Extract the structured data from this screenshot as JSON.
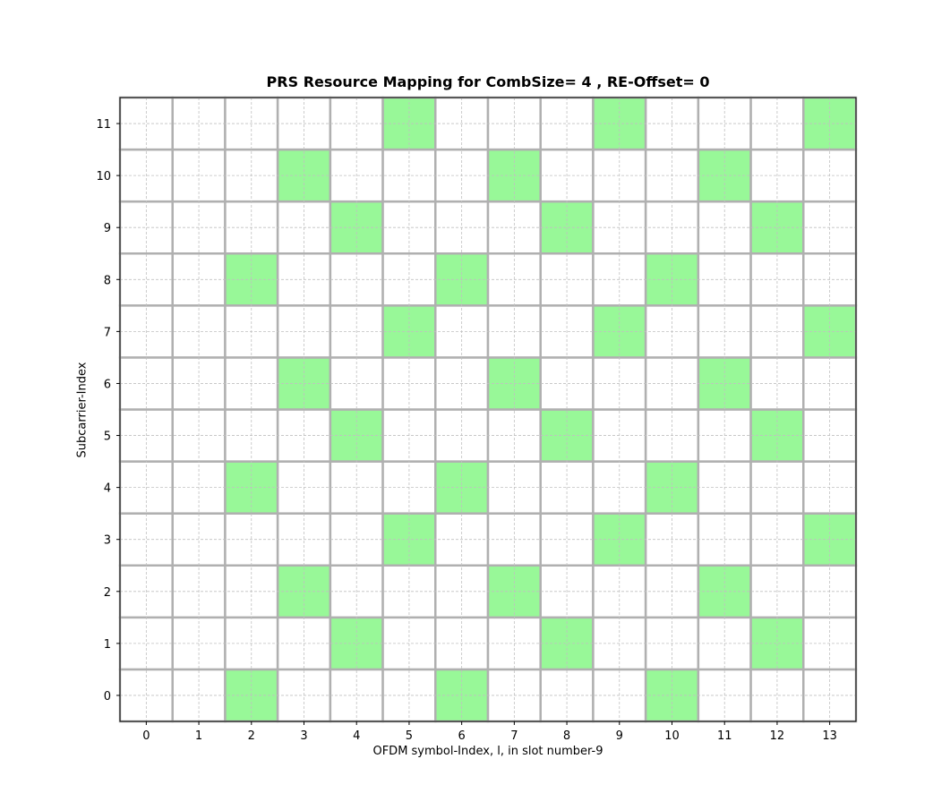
{
  "chart_data": {
    "type": "heatmap",
    "title": "PRS Resource Mapping for CombSize= 4 , RE-Offset= 0",
    "xlabel": "OFDM symbol-Index, l, in slot number-9",
    "ylabel": "Subcarrier-Index",
    "x_ticks": [
      "0",
      "1",
      "2",
      "3",
      "4",
      "5",
      "6",
      "7",
      "8",
      "9",
      "10",
      "11",
      "12",
      "13"
    ],
    "y_ticks": [
      "0",
      "1",
      "2",
      "3",
      "4",
      "5",
      "6",
      "7",
      "8",
      "9",
      "10",
      "11"
    ],
    "xlim": [
      -0.5,
      13.5
    ],
    "ylim": [
      -0.5,
      11.5
    ],
    "grid": true,
    "colors": {
      "allocated": "#98f898",
      "empty": "#ffffff",
      "cell_border": "#b0b0b0",
      "grid_dashed": "#c0c0c0"
    },
    "allocated_cells": [
      {
        "symbol": 2,
        "subcarrier": 0
      },
      {
        "symbol": 6,
        "subcarrier": 0
      },
      {
        "symbol": 10,
        "subcarrier": 0
      },
      {
        "symbol": 4,
        "subcarrier": 1
      },
      {
        "symbol": 8,
        "subcarrier": 1
      },
      {
        "symbol": 12,
        "subcarrier": 1
      },
      {
        "symbol": 3,
        "subcarrier": 2
      },
      {
        "symbol": 7,
        "subcarrier": 2
      },
      {
        "symbol": 11,
        "subcarrier": 2
      },
      {
        "symbol": 5,
        "subcarrier": 3
      },
      {
        "symbol": 9,
        "subcarrier": 3
      },
      {
        "symbol": 13,
        "subcarrier": 3
      },
      {
        "symbol": 2,
        "subcarrier": 4
      },
      {
        "symbol": 6,
        "subcarrier": 4
      },
      {
        "symbol": 10,
        "subcarrier": 4
      },
      {
        "symbol": 4,
        "subcarrier": 5
      },
      {
        "symbol": 8,
        "subcarrier": 5
      },
      {
        "symbol": 12,
        "subcarrier": 5
      },
      {
        "symbol": 3,
        "subcarrier": 6
      },
      {
        "symbol": 7,
        "subcarrier": 6
      },
      {
        "symbol": 11,
        "subcarrier": 6
      },
      {
        "symbol": 5,
        "subcarrier": 7
      },
      {
        "symbol": 9,
        "subcarrier": 7
      },
      {
        "symbol": 13,
        "subcarrier": 7
      },
      {
        "symbol": 2,
        "subcarrier": 8
      },
      {
        "symbol": 6,
        "subcarrier": 8
      },
      {
        "symbol": 10,
        "subcarrier": 8
      },
      {
        "symbol": 4,
        "subcarrier": 9
      },
      {
        "symbol": 8,
        "subcarrier": 9
      },
      {
        "symbol": 12,
        "subcarrier": 9
      },
      {
        "symbol": 3,
        "subcarrier": 10
      },
      {
        "symbol": 7,
        "subcarrier": 10
      },
      {
        "symbol": 11,
        "subcarrier": 10
      },
      {
        "symbol": 5,
        "subcarrier": 11
      },
      {
        "symbol": 9,
        "subcarrier": 11
      },
      {
        "symbol": 13,
        "subcarrier": 11
      }
    ]
  }
}
